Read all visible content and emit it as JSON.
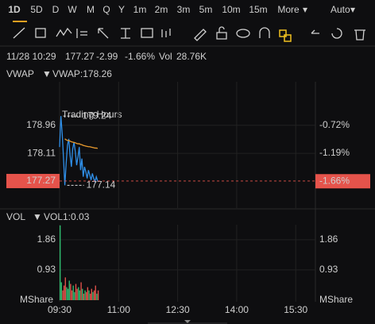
{
  "toolbar": {
    "timeframes": [
      "1D",
      "5D",
      "D",
      "W",
      "M",
      "Q",
      "Y",
      "1m",
      "2m",
      "3m",
      "5m",
      "10m",
      "15m",
      "More"
    ],
    "mode": "Auto"
  },
  "header": {
    "time": "11/28 10:29",
    "price": "177.27",
    "change": "-2.99",
    "change_pct": "-1.66%",
    "vol_label": "Vol",
    "vol": "28.76K"
  },
  "watermark": "Trading Hours",
  "chart_data": [
    {
      "type": "line",
      "indicator": "VWAP:178.26",
      "x": [
        "09:30",
        "09:32",
        "09:34",
        "09:36",
        "09:38",
        "09:40",
        "09:42",
        "09:44",
        "09:46",
        "09:48",
        "09:50",
        "09:52",
        "09:54",
        "09:56",
        "09:58",
        "10:00",
        "10:02",
        "10:04",
        "10:06",
        "10:08",
        "10:10",
        "10:12",
        "10:14",
        "10:16",
        "10:18",
        "10:20",
        "10:22",
        "10:24",
        "10:26",
        "10:28"
      ],
      "series": [
        {
          "color": "#2f8fe8",
          "values": [
            178.3,
            179.24,
            178.7,
            177.95,
            177.14,
            177.8,
            178.35,
            178.55,
            178.05,
            177.7,
            178.25,
            178.45,
            178.15,
            177.75,
            178.0,
            178.3,
            177.6,
            177.95,
            177.4,
            177.7,
            177.55,
            177.35,
            177.6,
            177.45,
            177.3,
            177.5,
            177.35,
            177.25,
            177.4,
            177.27
          ]
        },
        {
          "name": "VWAP",
          "color": "#e89a2e",
          "values": [
            null,
            null,
            null,
            null,
            178.55,
            178.52,
            178.5,
            178.5,
            178.48,
            178.46,
            178.45,
            178.44,
            178.43,
            178.41,
            178.4,
            178.4,
            178.38,
            178.37,
            178.35,
            178.34,
            178.33,
            178.32,
            178.31,
            178.31,
            178.3,
            178.29,
            178.28,
            178.27,
            178.27,
            178.26
          ]
        }
      ],
      "xlim": [
        "09:30",
        "16:00"
      ],
      "xticks": [
        "09:30",
        "11:00",
        "12:30",
        "14:00",
        "15:30"
      ],
      "ylim": [
        176.45,
        180.28
      ],
      "yticks": [
        178.96,
        178.11
      ],
      "y2lim": [
        -2.11,
        0.01
      ],
      "y2ticks": [
        {
          "value": -0.72,
          "label": "-0.72%"
        },
        {
          "value": -1.19,
          "label": "-1.19%"
        }
      ],
      "high": 179.24,
      "low": 177.14,
      "last": 177.27,
      "last_pct": {
        "value": -1.66,
        "label": "-1.66%"
      },
      "grid": true
    },
    {
      "type": "bar",
      "name": "VOL",
      "indicator": "VOL1:0.03",
      "unit": "MShare",
      "x": [
        "09:30",
        "09:32",
        "09:34",
        "09:36",
        "09:38",
        "09:40",
        "09:42",
        "09:44",
        "09:46",
        "09:48",
        "09:50",
        "09:52",
        "09:54",
        "09:56",
        "09:58",
        "10:00",
        "10:02",
        "10:04",
        "10:06",
        "10:08",
        "10:10",
        "10:12",
        "10:14",
        "10:16",
        "10:18",
        "10:20",
        "10:22",
        "10:24",
        "10:26",
        "10:28"
      ],
      "values": [
        2.3,
        0.55,
        0.3,
        0.45,
        0.7,
        0.4,
        0.35,
        0.6,
        0.5,
        0.3,
        0.45,
        0.25,
        0.5,
        0.35,
        0.4,
        0.3,
        0.55,
        0.35,
        0.2,
        0.3,
        0.25,
        0.4,
        0.3,
        0.2,
        0.35,
        0.25,
        0.3,
        0.45,
        0.2,
        0.3
      ],
      "colors": [
        "#2fbf71",
        "#2fbf71",
        "#e5534b",
        "#e5534b",
        "#e5534b",
        "#2fbf71",
        "#2fbf71",
        "#2fbf71",
        "#e5534b",
        "#e5534b",
        "#2fbf71",
        "#2fbf71",
        "#e5534b",
        "#e5534b",
        "#2fbf71",
        "#2fbf71",
        "#e5534b",
        "#2fbf71",
        "#e5534b",
        "#2fbf71",
        "#e5534b",
        "#e5534b",
        "#2fbf71",
        "#e5534b",
        "#e5534b",
        "#2fbf71",
        "#e5534b",
        "#e5534b",
        "#2fbf71",
        "#e5534b"
      ],
      "xlim": [
        "09:30",
        "16:00"
      ],
      "ylim": [
        0,
        2.32
      ],
      "yticks": [
        0.93,
        1.86
      ],
      "grid": true
    }
  ]
}
